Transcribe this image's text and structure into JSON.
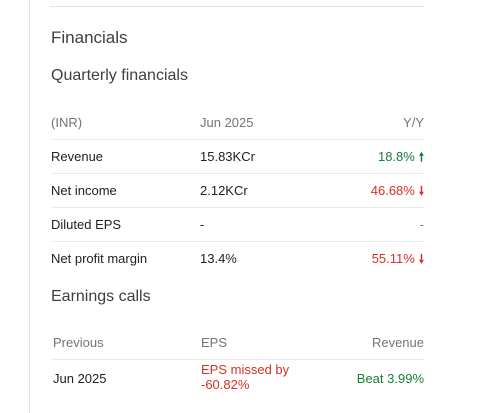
{
  "section_title": "Financials",
  "quarterly": {
    "title": "Quarterly financials",
    "header": {
      "currency": "(INR)",
      "period": "Jun 2025",
      "change": "Y/Y"
    },
    "rows": [
      {
        "label": "Revenue",
        "value": "15.83KCr",
        "change": "18.8%",
        "direction": "up"
      },
      {
        "label": "Net income",
        "value": "2.12KCr",
        "change": "46.68%",
        "direction": "down"
      },
      {
        "label": "Diluted EPS",
        "value": "-",
        "change": "-",
        "direction": "none"
      },
      {
        "label": "Net profit margin",
        "value": "13.4%",
        "change": "55.11%",
        "direction": "down"
      }
    ]
  },
  "earnings": {
    "title": "Earnings calls",
    "header": {
      "previous": "Previous",
      "eps": "EPS",
      "revenue": "Revenue"
    },
    "rows": [
      {
        "period": "Jun 2025",
        "eps": "EPS missed by -60.82%",
        "revenue": "Beat 3.99%"
      }
    ]
  },
  "colors": {
    "positive": "#188038",
    "negative": "#d93025",
    "muted": "#70757a"
  },
  "icons": {
    "up": "arrow-up-icon",
    "down": "arrow-down-icon"
  }
}
